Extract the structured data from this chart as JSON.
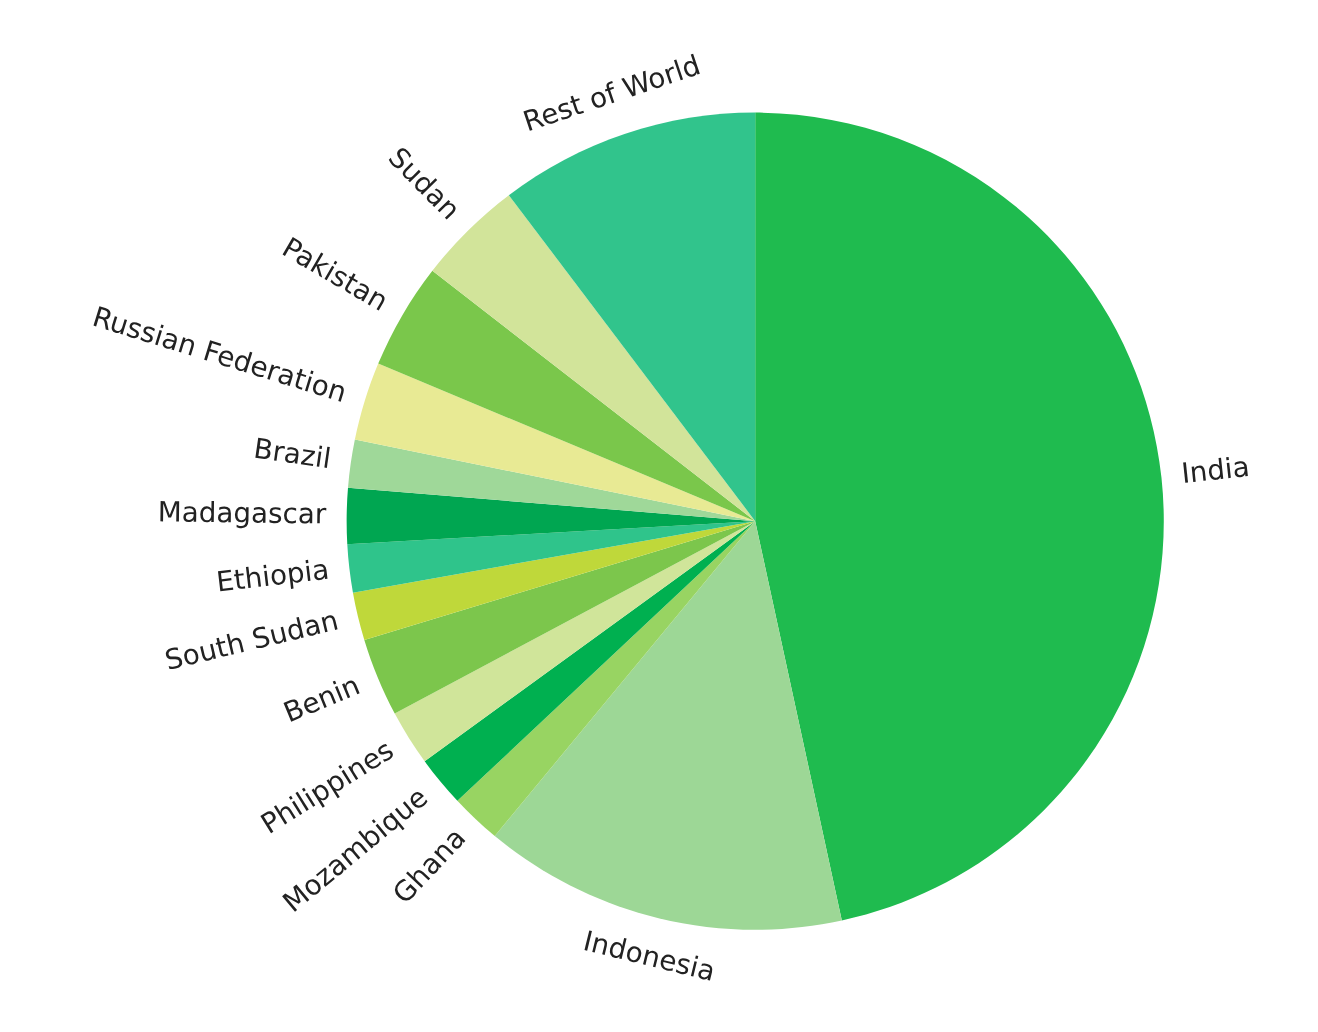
{
  "chart_data": {
    "type": "pie",
    "categories": [
      "India",
      "Indonesia",
      "Ghana",
      "Mozambique",
      "Philippines",
      "Benin",
      "South Sudan",
      "Ethiopia",
      "Madagascar",
      "Brazil",
      "Russian Federation",
      "Pakistan",
      "Sudan",
      "Rest of World"
    ],
    "values": [
      46.6,
      14.4,
      2.0,
      2.0,
      2.2,
      3.1,
      1.9,
      1.9,
      2.2,
      1.9,
      3.1,
      4.2,
      4.2,
      10.3
    ],
    "colors": [
      "#1fbb4f",
      "#9dd796",
      "#98d462",
      "#00b050",
      "#d0e59a",
      "#7cc64c",
      "#bfd83a",
      "#2fc48b",
      "#00a651",
      "#9fd899",
      "#e8ea94",
      "#7ac74b",
      "#d2e49a",
      "#31c48c"
    ],
    "legend": false
  }
}
